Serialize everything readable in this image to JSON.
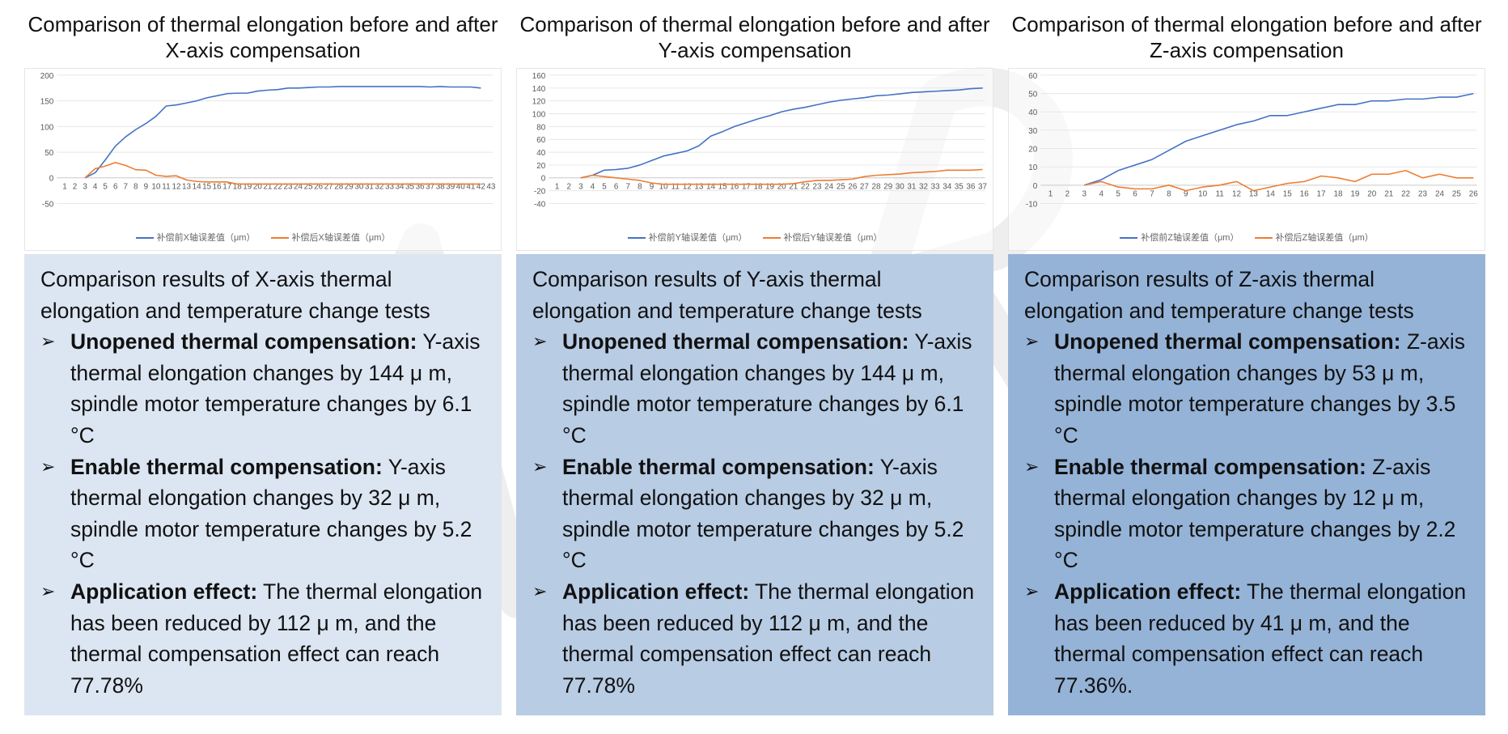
{
  "colors": {
    "before_series": "#4472C4",
    "after_series": "#ED7D31",
    "panel_x": "#dce6f2",
    "panel_y": "#b8cce4",
    "panel_z": "#95b3d7",
    "gridline": "#e7e7e7",
    "axis_text": "#595959"
  },
  "columns": [
    {
      "title": "Comparison of thermal elongation before and after X-axis compensation",
      "panel": {
        "title": "Comparison results of X-axis thermal elongation and temperature change tests",
        "bullets": [
          {
            "icon": "arrow-bullet-icon",
            "label": "Unopened thermal compensation:",
            "text": " Y-axis thermal elongation changes by 144 μ m, spindle motor temperature changes by 6.1 °C"
          },
          {
            "icon": "arrow-bullet-icon",
            "label": "Enable thermal compensation:",
            "text": " Y-axis thermal elongation changes by 32 μ m, spindle motor temperature changes by 5.2 °C"
          },
          {
            "icon": "arrow-bullet-icon",
            "label": "Application effect:",
            "text": " The thermal elongation has been reduced by 112 μ m, and the thermal compensation effect can reach 77.78%"
          }
        ]
      }
    },
    {
      "title": "Comparison of thermal elongation before and after Y-axis compensation",
      "panel": {
        "title": "Comparison results of Y-axis thermal elongation and temperature change tests",
        "bullets": [
          {
            "icon": "arrow-bullet-icon",
            "label": "Unopened thermal compensation:",
            "text": " Y-axis thermal elongation changes by 144 μ m, spindle motor temperature changes by 6.1 °C"
          },
          {
            "icon": "arrow-bullet-icon",
            "label": "Enable thermal compensation:",
            "text": " Y-axis thermal elongation changes by 32 μ m, spindle motor temperature changes by 5.2 °C"
          },
          {
            "icon": "arrow-bullet-icon",
            "label": "Application effect:",
            "text": " The thermal elongation has been reduced by 112 μ m, and the thermal compensation effect can reach 77.78%"
          }
        ]
      }
    },
    {
      "title": "Comparison of thermal elongation before and after Z-axis compensation",
      "panel": {
        "title": "Comparison results of Z-axis thermal elongation and temperature change tests",
        "bullets": [
          {
            "icon": "arrow-bullet-icon",
            "label": "Unopened thermal compensation:",
            "text": " Z-axis thermal elongation changes by 53 μ m, spindle motor temperature changes by 3.5 °C"
          },
          {
            "icon": "arrow-bullet-icon",
            "label": "Enable thermal compensation:",
            "text": " Z-axis thermal elongation changes by 12 μ m, spindle motor temperature changes by 2.2 °C"
          },
          {
            "icon": "arrow-bullet-icon",
            "label": "Application effect:",
            "text": " The thermal elongation has been reduced by 41 μ m, and the thermal compensation effect can reach 77.36%."
          }
        ]
      }
    }
  ],
  "chart_data": [
    {
      "type": "line",
      "title": "Comparison of thermal elongation before and after X-axis compensation",
      "xlabel": "",
      "ylabel": "",
      "x_start": 1,
      "x_end": 43,
      "ylim": [
        -50,
        200
      ],
      "yticks": [
        -50,
        0,
        50,
        100,
        150,
        200
      ],
      "grid": true,
      "legend_position": "bottom",
      "series": [
        {
          "name": "补偿前X轴误差值（μm）",
          "x_start": 3,
          "values": [
            0,
            10,
            35,
            62,
            80,
            94,
            106,
            120,
            140,
            142,
            146,
            150,
            156,
            160,
            164,
            165,
            165,
            169,
            171,
            172,
            175,
            175,
            176,
            177,
            177,
            178,
            178,
            178,
            178,
            178,
            178,
            178,
            178,
            178,
            177,
            178,
            177,
            177,
            177,
            175
          ]
        },
        {
          "name": "补偿后X轴误差值（μm）",
          "x_start": 3,
          "values": [
            0,
            18,
            23,
            30,
            24,
            16,
            15,
            5,
            3,
            4,
            -4,
            -7,
            -8,
            -8,
            -8,
            -12,
            -12,
            -12,
            -12,
            -12,
            -12,
            -12,
            -12,
            -12,
            -12,
            -12,
            -12,
            -12,
            -12,
            -12,
            -12,
            -12,
            -12,
            -12,
            -12,
            -12,
            -12,
            -12,
            -12,
            -12
          ]
        }
      ]
    },
    {
      "type": "line",
      "title": "Comparison of thermal elongation before and after Y-axis compensation",
      "xlabel": "",
      "ylabel": "",
      "x_start": 1,
      "x_end": 37,
      "ylim": [
        -40,
        160
      ],
      "yticks": [
        -40,
        -20,
        0,
        20,
        40,
        60,
        80,
        100,
        120,
        140,
        160
      ],
      "grid": true,
      "legend_position": "bottom",
      "series": [
        {
          "name": "补偿前Y轴误差值（μm）",
          "x_start": 3,
          "values": [
            0,
            4,
            12,
            13,
            15,
            20,
            27,
            34,
            38,
            42,
            50,
            65,
            72,
            80,
            86,
            92,
            97,
            103,
            107,
            110,
            114,
            118,
            121,
            123,
            125,
            128,
            129,
            131,
            133,
            134,
            135,
            136,
            137,
            139,
            140
          ]
        },
        {
          "name": "补偿后Y轴误差值（μm）",
          "x_start": 3,
          "values": [
            0,
            4,
            2,
            0,
            -2,
            -4,
            -8,
            -10,
            -10,
            -10,
            -10,
            -10,
            -10,
            -10,
            -10,
            -10,
            -10,
            -10,
            -9,
            -6,
            -4,
            -4,
            -3,
            -2,
            2,
            4,
            5,
            6,
            8,
            9,
            10,
            12,
            12,
            12,
            13
          ]
        }
      ]
    },
    {
      "type": "line",
      "title": "Comparison of thermal elongation before and after Z-axis compensation",
      "xlabel": "",
      "ylabel": "",
      "x_start": 1,
      "x_end": 26,
      "ylim": [
        -10,
        60
      ],
      "yticks": [
        -10,
        0,
        10,
        20,
        30,
        40,
        50,
        60
      ],
      "grid": true,
      "legend_position": "bottom",
      "series": [
        {
          "name": "补偿前Z轴误差值（μm）",
          "x_start": 3,
          "values": [
            0,
            3,
            8,
            11,
            14,
            19,
            24,
            27,
            30,
            33,
            35,
            38,
            38,
            40,
            42,
            44,
            44,
            46,
            46,
            47,
            47,
            48,
            48,
            50
          ]
        },
        {
          "name": "补偿后Z轴误差值（μm）",
          "x_start": 3,
          "values": [
            0,
            2,
            -1,
            -2,
            -2,
            0,
            -3,
            -1,
            0,
            2,
            -3,
            -1,
            1,
            2,
            5,
            4,
            2,
            6,
            6,
            8,
            4,
            6,
            4,
            4
          ]
        }
      ]
    }
  ]
}
